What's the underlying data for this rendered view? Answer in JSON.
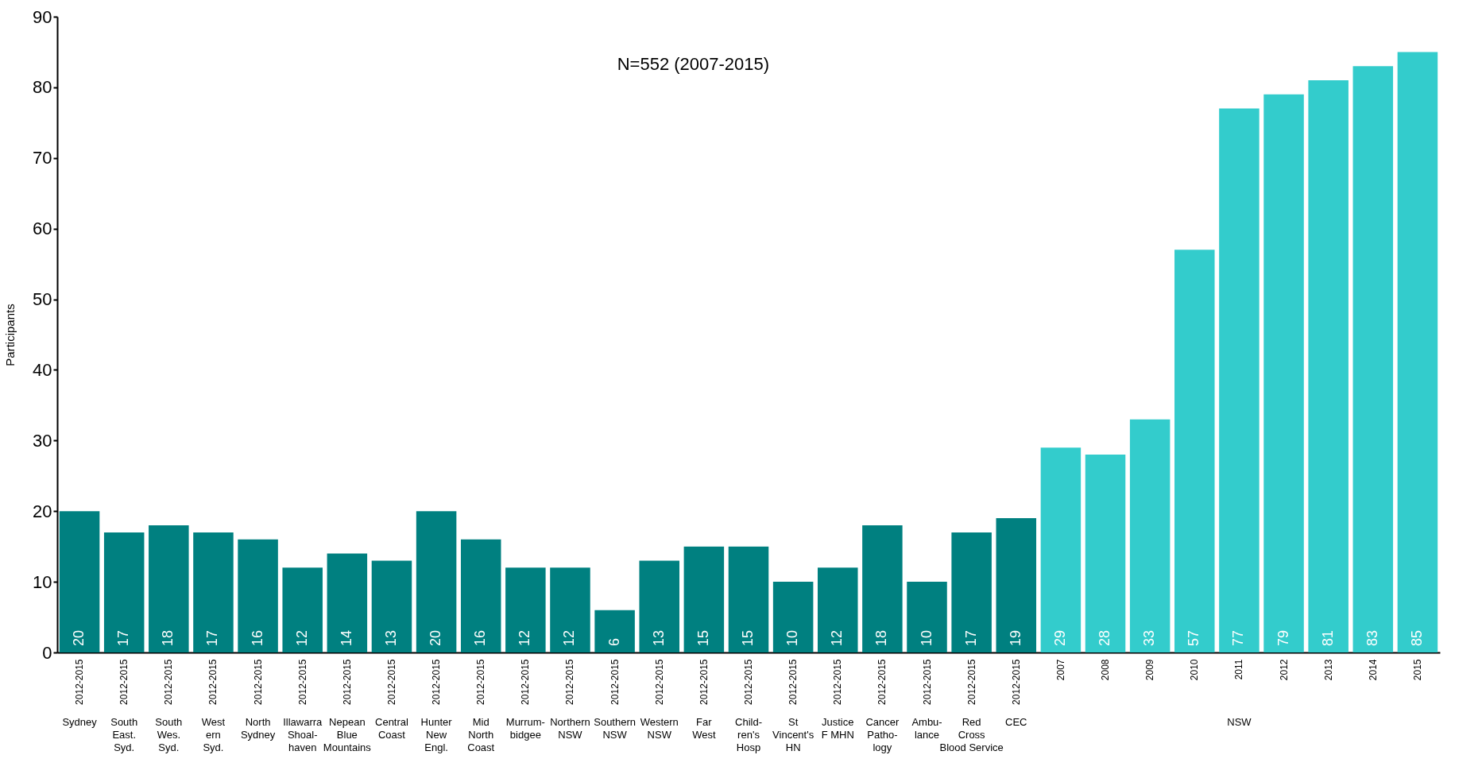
{
  "chart_data": {
    "type": "bar",
    "ylabel": "Participants",
    "categories": [
      "2012-2015",
      "2012-2015",
      "2012-2015",
      "2012-2015",
      "2012-2015",
      "2012-2015",
      "2012-2015",
      "2012-2015",
      "2012-2015",
      "2012-2015",
      "2012-2015",
      "2012-2015",
      "2012-2015",
      "2012-2015",
      "2012-2015",
      "2012-2015",
      "2012-2015",
      "2012-2015",
      "2012-2015",
      "2012-2015",
      "2012-2015",
      "2012-2015",
      "2007",
      "2008",
      "2009",
      "2010",
      "2011",
      "2012",
      "2013",
      "2014",
      "2015"
    ],
    "values": [
      20,
      17,
      18,
      17,
      16,
      12,
      14,
      13,
      20,
      16,
      12,
      12,
      6,
      13,
      15,
      15,
      10,
      12,
      18,
      10,
      17,
      19,
      29,
      28,
      33,
      57,
      77,
      79,
      81,
      83,
      85
    ],
    "colors": [
      "#008080",
      "#008080",
      "#008080",
      "#008080",
      "#008080",
      "#008080",
      "#008080",
      "#008080",
      "#008080",
      "#008080",
      "#008080",
      "#008080",
      "#008080",
      "#008080",
      "#008080",
      "#008080",
      "#008080",
      "#008080",
      "#008080",
      "#008080",
      "#008080",
      "#008080",
      "#33cccc",
      "#33cccc",
      "#33cccc",
      "#33cccc",
      "#33cccc",
      "#33cccc",
      "#33cccc",
      "#33cccc",
      "#33cccc"
    ],
    "ylim": [
      0,
      90
    ],
    "yticks": [
      0,
      10,
      20,
      30,
      40,
      50,
      60,
      70,
      80,
      90
    ],
    "data_labels": true,
    "grid": false,
    "annotations": [
      "N=552 (2007-2015)",
      "Sydney",
      "South\nEast.\nSyd.",
      "South\nWes.\nSyd.",
      "West\nern\nSyd.",
      "North\nSydney",
      "Illawarra\nShoal-\nhaven",
      "Nepean\nBlue\nMountains",
      "Central\nCoast",
      "Hunter\nNew\nEngl.",
      "Mid\nNorth\nCoast",
      "Murrum-\nbidgee",
      "Northern\nNSW",
      "Southern\nNSW",
      "Western\nNSW",
      "Far\nWest",
      "Child-\nren's\nHosp",
      "St\nVincent's\nHN",
      "Justice\nF MHN",
      "Cancer\nPatho-\nlogy",
      "Ambu-\nlance",
      "Red\nCross\nBlood Service",
      "CEC",
      "NSW"
    ]
  }
}
